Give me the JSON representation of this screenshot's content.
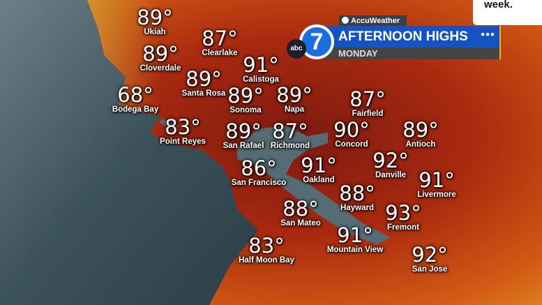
{
  "caption_text": "week.",
  "header": {
    "sponsor": "AccuWeather",
    "title": "AFTERNOON HIGHS",
    "dots": "•••",
    "day": "MONDAY",
    "station_logo": "7",
    "network_logo": "abc"
  },
  "colors": {
    "bar_blue": "#1553c4",
    "accent_yellow": "#f1b322",
    "ocean": "#3e5660",
    "land": "#b8300f"
  },
  "cities": [
    {
      "name": "Ukiah",
      "temp": "89°"
    },
    {
      "name": "Clearlake",
      "temp": "87°"
    },
    {
      "name": "Cloverdale",
      "temp": "89°"
    },
    {
      "name": "Calistoga",
      "temp": "91°"
    },
    {
      "name": "Santa Rosa",
      "temp": "89°"
    },
    {
      "name": "Bodega Bay",
      "temp": "68°"
    },
    {
      "name": "Sonoma",
      "temp": "89°"
    },
    {
      "name": "Napa",
      "temp": "89°"
    },
    {
      "name": "Fairfield",
      "temp": "87°"
    },
    {
      "name": "Point Reyes",
      "temp": "83°"
    },
    {
      "name": "San Rafael",
      "temp": "89°"
    },
    {
      "name": "Richmond",
      "temp": "87°"
    },
    {
      "name": "Concord",
      "temp": "90°"
    },
    {
      "name": "Antioch",
      "temp": "89°"
    },
    {
      "name": "Danville",
      "temp": "92°"
    },
    {
      "name": "San Francisco",
      "temp": "86°"
    },
    {
      "name": "Oakland",
      "temp": "91°"
    },
    {
      "name": "Livermore",
      "temp": "91°"
    },
    {
      "name": "Hayward",
      "temp": "88°"
    },
    {
      "name": "Fremont",
      "temp": "93°"
    },
    {
      "name": "San Mateo",
      "temp": "88°"
    },
    {
      "name": "Mountain View",
      "temp": "91°"
    },
    {
      "name": "Half Moon Bay",
      "temp": "83°"
    },
    {
      "name": "San Jose",
      "temp": "92°"
    }
  ]
}
